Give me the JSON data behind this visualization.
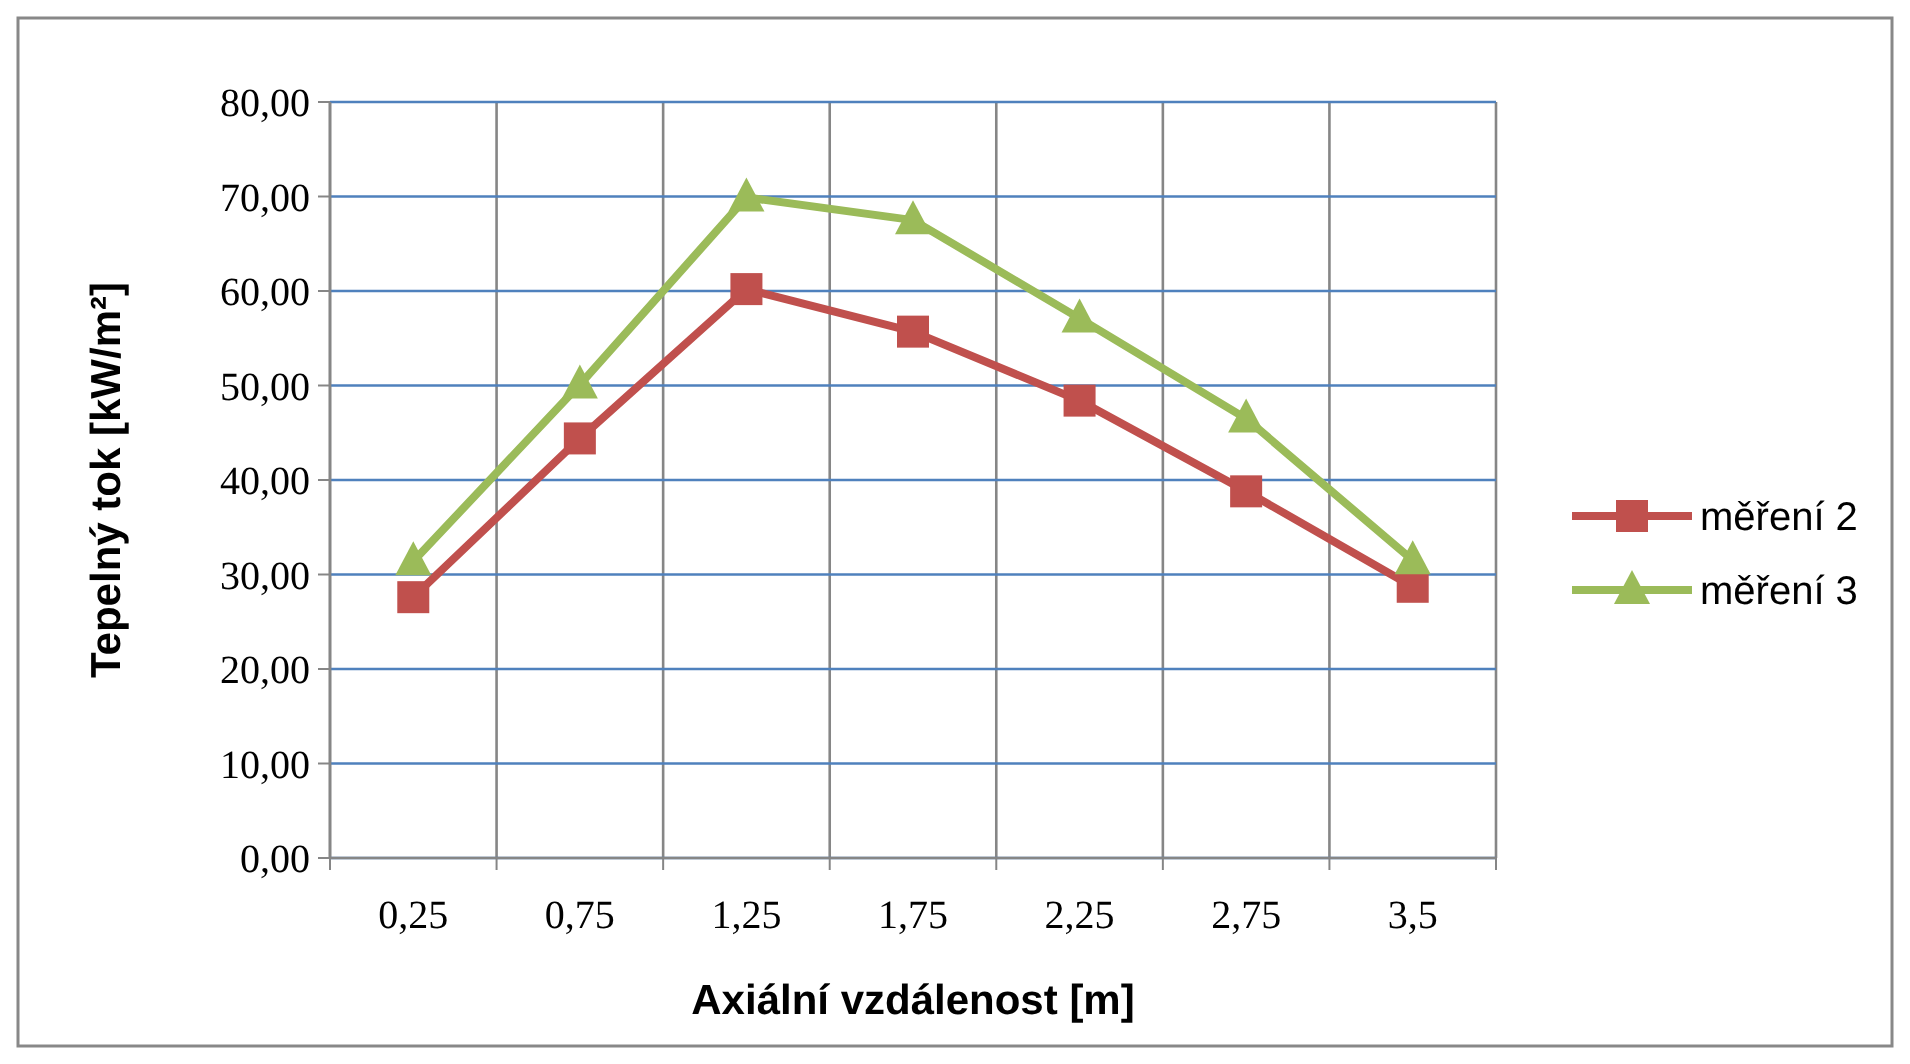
{
  "chart_data": {
    "type": "line",
    "xlabel": "Axiální vzdálenost [m]",
    "ylabel": "Tepelný tok [kW/m²]",
    "categories": [
      "0,25",
      "0,75",
      "1,25",
      "1,75",
      "2,25",
      "2,75",
      "3,5"
    ],
    "series": [
      {
        "name": "měření 2",
        "color": "#c0504d",
        "marker": "square",
        "values": [
          27.6,
          44.4,
          60.2,
          55.7,
          48.4,
          38.8,
          28.7
        ]
      },
      {
        "name": "měření 3",
        "color": "#9bbb59",
        "marker": "triangle",
        "values": [
          31.4,
          50.1,
          69.9,
          67.5,
          57.1,
          46.5,
          31.5
        ]
      }
    ],
    "ylim": [
      0,
      80
    ],
    "yticks": [
      {
        "value": 0,
        "label": "0,00"
      },
      {
        "value": 10,
        "label": "10,00"
      },
      {
        "value": 20,
        "label": "20,00"
      },
      {
        "value": 30,
        "label": "30,00"
      },
      {
        "value": 40,
        "label": "40,00"
      },
      {
        "value": 50,
        "label": "50,00"
      },
      {
        "value": 60,
        "label": "60,00"
      },
      {
        "value": 70,
        "label": "70,00"
      },
      {
        "value": 80,
        "label": "80,00"
      }
    ],
    "grid": true,
    "legend": "right"
  }
}
